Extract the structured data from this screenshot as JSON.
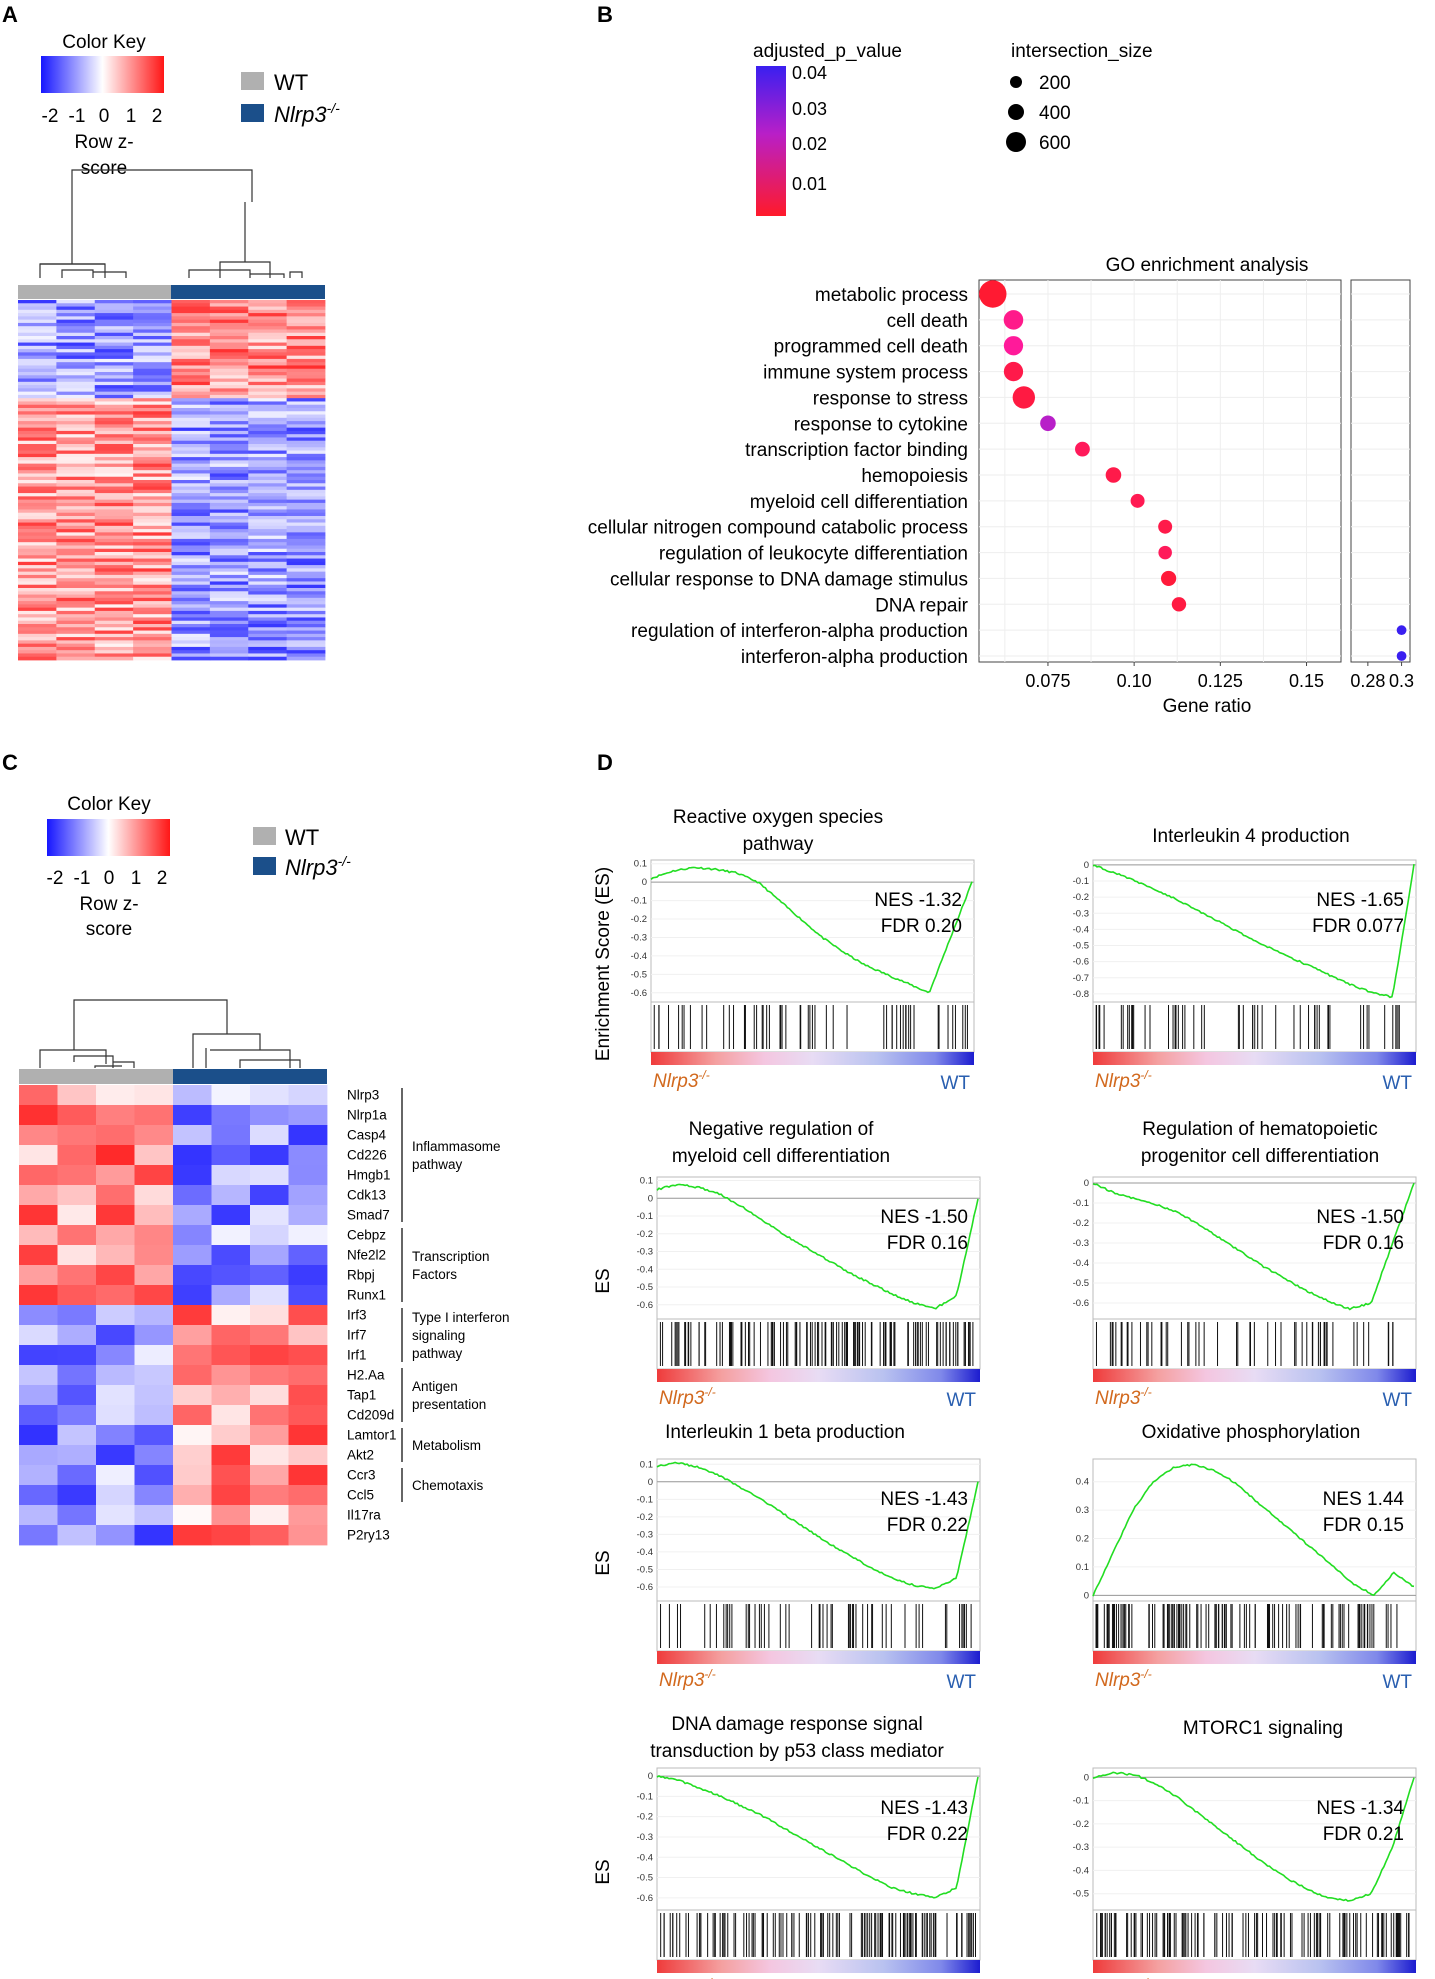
{
  "panels": {
    "A": {
      "letter": "A",
      "color_key": {
        "title": "Color Key",
        "ticks": [
          "-2",
          "-1",
          "0",
          "1",
          "2"
        ],
        "label_line1": "Row z-",
        "label_line2": "score"
      },
      "legend": {
        "wt": "WT",
        "ko": "Nlrp3",
        "ko_sup": "-/-"
      }
    },
    "B": {
      "letter": "B",
      "pvalue_title": "adjusted_p_value",
      "pvalue_ticks": [
        "0.04",
        "0.03",
        "0.02",
        "0.01"
      ],
      "size_title": "intersection_size",
      "size_ticks": [
        "200",
        "400",
        "600"
      ]
    },
    "C": {
      "letter": "C",
      "color_key": {
        "title": "Color Key",
        "ticks": [
          "-2",
          "-1",
          "0",
          "1",
          "2"
        ],
        "label_line1": "Row z-",
        "label_line2": "score"
      },
      "legend": {
        "wt": "WT",
        "ko": "Nlrp3",
        "ko_sup": "-/-"
      },
      "genes": [
        "Nlrp3",
        "Nlrp1a",
        "Casp4",
        "Cd226",
        "Hmgb1",
        "Cdk13",
        "Smad7",
        "Cebpz",
        "Nfe2l2",
        "Rbpj",
        "Runx1",
        "Irf3",
        "Irf7",
        "Irf1",
        "H2.Aa",
        "Tap1",
        "Cd209d",
        "Lamtor1",
        "Akt2",
        "Ccr3",
        "Ccl5",
        "Il17ra",
        "P2ry13"
      ],
      "groups": [
        {
          "lines": [
            "Inflammasome",
            "pathway"
          ],
          "from": 0,
          "to": 6
        },
        {
          "lines": [
            "Transcription",
            "Factors"
          ],
          "from": 7,
          "to": 10
        },
        {
          "lines": [
            "Type I interferon",
            "signaling",
            "pathway"
          ],
          "from": 11,
          "to": 13
        },
        {
          "lines": [
            "Antigen",
            "presentation"
          ],
          "from": 14,
          "to": 16
        },
        {
          "lines": [
            "Metabolism"
          ],
          "from": 17,
          "to": 18
        },
        {
          "lines": [
            "Chemotaxis"
          ],
          "from": 19,
          "to": 20
        }
      ]
    },
    "D": {
      "letter": "D",
      "ylabel_full": "Enrichment Score (ES)",
      "ylabel_short": "ES",
      "ko_label": "Nlrp3",
      "ko_sup": "-/-",
      "wt_label": "WT",
      "plots": [
        {
          "title": [
            "Reactive oxygen species",
            "pathway"
          ],
          "nes": "NES -1.32",
          "fdr": "FDR 0.20"
        },
        {
          "title": [
            "Interleukin 4 production"
          ],
          "nes": "NES -1.65",
          "fdr": "FDR 0.077"
        },
        {
          "title": [
            "Negative regulation of",
            "myeloid cell differentiation"
          ],
          "nes": "NES -1.50",
          "fdr": "FDR 0.16"
        },
        {
          "title": [
            "Regulation of hematopoietic",
            "progenitor cell differentiation"
          ],
          "nes": "NES -1.50",
          "fdr": "FDR 0.16"
        },
        {
          "title": [
            "Interleukin 1 beta production"
          ],
          "nes": "NES -1.43",
          "fdr": "FDR 0.22"
        },
        {
          "title": [
            "Oxidative phosphorylation"
          ],
          "nes": "NES 1.44",
          "fdr": "FDR 0.15"
        },
        {
          "title": [
            "DNA damage response signal",
            "transduction by p53 class mediator"
          ],
          "nes": "NES -1.43",
          "fdr": "FDR 0.22"
        },
        {
          "title": [
            "MTORC1 signaling"
          ],
          "nes": "NES -1.34",
          "fdr": "FDR 0.21"
        }
      ]
    }
  },
  "chart_data": [
    {
      "type": "scatter",
      "title": "GO enrichment analysis",
      "xlabel": "Gene ratio",
      "ylabel": "",
      "x_ticks": [
        "0.075",
        "0.10",
        "0.125",
        "0.15",
        "0.28",
        "0.3"
      ],
      "xlim": [
        0.055,
        0.16
      ],
      "xlim_broken": [
        0.27,
        0.305
      ],
      "size_legend": "intersection_size",
      "color_legend": "adjusted_p_value",
      "points": [
        {
          "term": "metabolic process",
          "gene_ratio": 0.059,
          "intersection_size": 650,
          "p_adj": 0.001
        },
        {
          "term": "cell death",
          "gene_ratio": 0.065,
          "intersection_size": 260,
          "p_adj": 0.012
        },
        {
          "term": "programmed cell death",
          "gene_ratio": 0.065,
          "intersection_size": 250,
          "p_adj": 0.014
        },
        {
          "term": "immune system process",
          "gene_ratio": 0.065,
          "intersection_size": 250,
          "p_adj": 0.004
        },
        {
          "term": "response to stress",
          "gene_ratio": 0.068,
          "intersection_size": 380,
          "p_adj": 0.003
        },
        {
          "term": "response to cytokine",
          "gene_ratio": 0.075,
          "intersection_size": 130,
          "p_adj": 0.02
        },
        {
          "term": "transcription factor binding",
          "gene_ratio": 0.085,
          "intersection_size": 110,
          "p_adj": 0.006
        },
        {
          "term": "hemopoiesis",
          "gene_ratio": 0.094,
          "intersection_size": 130,
          "p_adj": 0.004
        },
        {
          "term": "myeloid cell differentiation",
          "gene_ratio": 0.101,
          "intersection_size": 90,
          "p_adj": 0.005
        },
        {
          "term": "cellular nitrogen compound catabolic process",
          "gene_ratio": 0.109,
          "intersection_size": 90,
          "p_adj": 0.004
        },
        {
          "term": "regulation of leukocyte differentiation",
          "gene_ratio": 0.109,
          "intersection_size": 80,
          "p_adj": 0.006
        },
        {
          "term": "cellular response to DNA damage stimulus",
          "gene_ratio": 0.11,
          "intersection_size": 120,
          "p_adj": 0.002
        },
        {
          "term": "DNA repair",
          "gene_ratio": 0.113,
          "intersection_size": 100,
          "p_adj": 0.003
        },
        {
          "term": "regulation of interferon-alpha production",
          "gene_ratio": 0.3,
          "intersection_size": 20,
          "p_adj": 0.045
        },
        {
          "term": "interferon-alpha production",
          "gene_ratio": 0.3,
          "intersection_size": 20,
          "p_adj": 0.045
        }
      ]
    },
    {
      "type": "line",
      "title": "Reactive oxygen species pathway",
      "ylabel": "Enrichment Score (ES)",
      "y_ticks": [
        0.1,
        0.0,
        -0.1,
        -0.2,
        -0.3,
        -0.4,
        -0.5,
        -0.6
      ],
      "ylim": [
        -0.65,
        0.12
      ],
      "es_curve": [
        0.02,
        0.06,
        0.08,
        0.07,
        0.05,
        0.0,
        -0.1,
        -0.2,
        -0.3,
        -0.38,
        -0.45,
        -0.5,
        -0.55,
        -0.6,
        -0.3,
        0.0
      ]
    },
    {
      "type": "line",
      "title": "Interleukin 4 production",
      "y_ticks": [
        0.0,
        -0.1,
        -0.2,
        -0.3,
        -0.4,
        -0.5,
        -0.6,
        -0.7,
        -0.8
      ],
      "ylim": [
        -0.85,
        0.03
      ],
      "es_curve": [
        0.0,
        -0.05,
        -0.1,
        -0.16,
        -0.22,
        -0.29,
        -0.36,
        -0.43,
        -0.5,
        -0.56,
        -0.62,
        -0.68,
        -0.74,
        -0.79,
        -0.82,
        0.0
      ]
    },
    {
      "type": "line",
      "title": "Negative regulation of myeloid cell differentiation",
      "y_ticks": [
        0.1,
        0.0,
        -0.1,
        -0.2,
        -0.3,
        -0.4,
        -0.5,
        -0.6
      ],
      "ylim": [
        -0.68,
        0.12
      ],
      "es_curve": [
        0.05,
        0.08,
        0.06,
        0.02,
        -0.05,
        -0.13,
        -0.21,
        -0.28,
        -0.35,
        -0.42,
        -0.48,
        -0.54,
        -0.59,
        -0.62,
        -0.55,
        0.0
      ]
    },
    {
      "type": "line",
      "title": "Regulation of hematopoietic progenitor cell differentiation",
      "y_ticks": [
        0.0,
        -0.1,
        -0.2,
        -0.3,
        -0.4,
        -0.5,
        -0.6
      ],
      "ylim": [
        -0.68,
        0.03
      ],
      "es_curve": [
        0.0,
        -0.05,
        -0.08,
        -0.11,
        -0.15,
        -0.21,
        -0.28,
        -0.35,
        -0.42,
        -0.48,
        -0.54,
        -0.59,
        -0.63,
        -0.6,
        -0.3,
        0.0
      ]
    },
    {
      "type": "line",
      "title": "Interleukin 1 beta production",
      "y_ticks": [
        0.1,
        0.0,
        -0.1,
        -0.2,
        -0.3,
        -0.4,
        -0.5,
        -0.6
      ],
      "ylim": [
        -0.68,
        0.13
      ],
      "es_curve": [
        0.09,
        0.11,
        0.08,
        0.03,
        -0.04,
        -0.11,
        -0.19,
        -0.27,
        -0.35,
        -0.42,
        -0.49,
        -0.55,
        -0.59,
        -0.61,
        -0.55,
        0.0
      ]
    },
    {
      "type": "line",
      "title": "Oxidative phosphorylation",
      "y_ticks": [
        0.4,
        0.3,
        0.2,
        0.1,
        0.0
      ],
      "ylim": [
        -0.02,
        0.48
      ],
      "es_curve": [
        0.0,
        0.15,
        0.3,
        0.4,
        0.45,
        0.46,
        0.44,
        0.4,
        0.34,
        0.28,
        0.22,
        0.16,
        0.1,
        0.04,
        0.0,
        0.08,
        0.03
      ]
    },
    {
      "type": "line",
      "title": "DNA damage response signal transduction by p53 class mediator",
      "y_ticks": [
        0.0,
        -0.1,
        -0.2,
        -0.3,
        -0.4,
        -0.5,
        -0.6
      ],
      "ylim": [
        -0.66,
        0.04
      ],
      "es_curve": [
        0.0,
        -0.02,
        -0.06,
        -0.1,
        -0.15,
        -0.2,
        -0.26,
        -0.32,
        -0.38,
        -0.44,
        -0.5,
        -0.55,
        -0.58,
        -0.6,
        -0.55,
        0.0
      ]
    },
    {
      "type": "line",
      "title": "MTORC1 signaling",
      "y_ticks": [
        0.0,
        -0.1,
        -0.2,
        -0.3,
        -0.4,
        -0.5
      ],
      "ylim": [
        -0.57,
        0.04
      ],
      "es_curve": [
        0.0,
        0.02,
        0.01,
        -0.03,
        -0.09,
        -0.16,
        -0.23,
        -0.3,
        -0.37,
        -0.43,
        -0.48,
        -0.52,
        -0.53,
        -0.5,
        -0.3,
        0.0
      ]
    }
  ]
}
